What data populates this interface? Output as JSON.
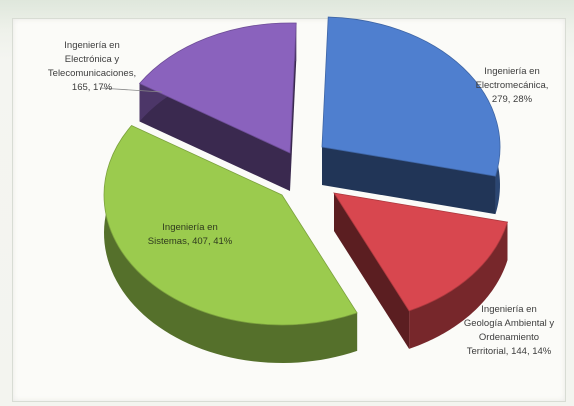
{
  "chart_data": {
    "type": "pie",
    "style": "3d-exploded",
    "title": "",
    "slices": [
      {
        "label": "Ingeniería en Electromecánica",
        "value": 279,
        "percent": "28%",
        "color": "#4f7fcf",
        "text_lines": [
          "Ingeniería en",
          "Electromecánica,",
          "279, 28%"
        ]
      },
      {
        "label": "Ingeniería en Geología Ambiental y Ordenamiento Territorial",
        "value": 144,
        "percent": "14%",
        "color": "#d8474f",
        "text_lines": [
          "Ingeniería en",
          "Geología Ambiental y",
          "Ordenamiento",
          "Territorial, 144, 14%"
        ]
      },
      {
        "label": "Ingeniería en Sistemas",
        "value": 407,
        "percent": "41%",
        "color": "#9bcb4e",
        "text_lines": [
          "Ingeniería en",
          "Sistemas, 407, 41%"
        ]
      },
      {
        "label": "Ingeniería en Electrónica y Telecomunicaciones",
        "value": 165,
        "percent": "17%",
        "color": "#8a62bd",
        "text_lines": [
          "Ingeniería en",
          "Electrónica y",
          "Telecomunicaciones,",
          "165, 17%"
        ]
      }
    ]
  }
}
